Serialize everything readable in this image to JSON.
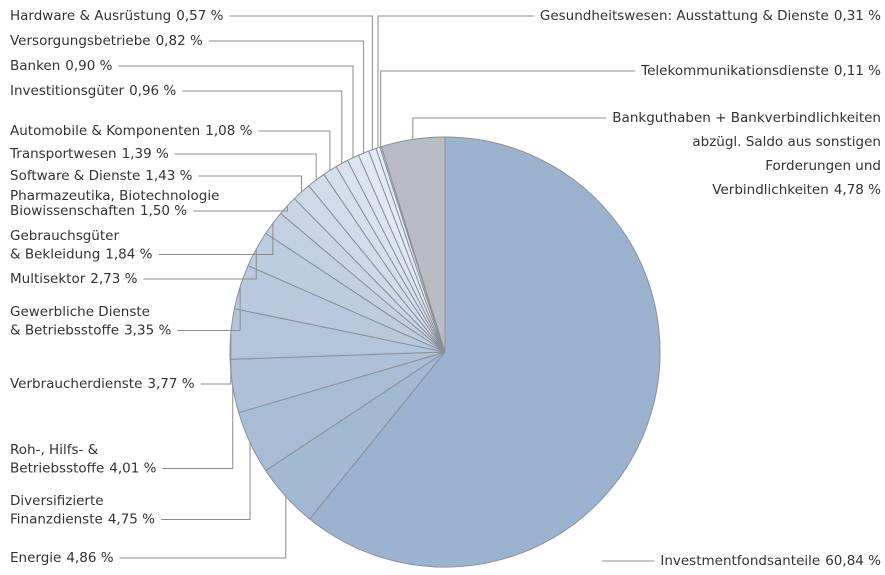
{
  "chart_data": {
    "type": "pie",
    "categories": [
      "Investmentfondsanteile",
      "Energie",
      "Diversifizierte\nFinanzdienste",
      "Roh-, Hilfs- &\nBetriebsstoffe",
      "Verbraucherdienste",
      "Gewerbliche Dienste\n& Betriebsstoffe",
      "Multisektor",
      "Gebrauchsgüter\n& Bekleidung",
      "Pharmazeutika, Biotechnologie\nBiowissenschaften",
      "Software & Dienste",
      "Transportwesen",
      "Automobile & Komponenten",
      "Investitionsgüter",
      "Banken",
      "Versorgungsbetriebe",
      "Hardware & Ausrüstung",
      "Gesundheitswesen: Ausstattung & Dienste",
      "Telekommunikationsdienste",
      "Bankguthaben + Bankverbindlichkeiten\nabzügl. Saldo aus sonstigen\nForderungen und\nVerbindlichkeiten"
    ],
    "values": [
      60.84,
      4.86,
      4.75,
      4.01,
      3.77,
      3.35,
      2.73,
      1.84,
      1.5,
      1.43,
      1.39,
      1.08,
      0.96,
      0.9,
      0.82,
      0.57,
      0.31,
      0.11,
      4.78
    ],
    "value_labels": [
      "60,84 %",
      "4,86 %",
      "4,75 %",
      "4,01 %",
      "3,77 %",
      "3,35 %",
      "2,73 %",
      "1,84 %",
      "1,50 %",
      "1,43 %",
      "1,39 %",
      "1,08 %",
      "0,96 %",
      "0,90 %",
      "0,82 %",
      "0,57 %",
      "0,31 %",
      "0,11 %",
      "4,78 %"
    ],
    "colors": [
      "#9cb3cf",
      "#a3b8d2",
      "#a8bcd5",
      "#aec1d8",
      "#b3c5da",
      "#b8c9dd",
      "#bdcde0",
      "#c2d1e2",
      "#c7d5e5",
      "#ccd9e7",
      "#d0dce9",
      "#d4dfeb",
      "#d8e2ed",
      "#dce5ef",
      "#e0e8f1",
      "#e3eaf2",
      "#e6ecf4",
      "#e9eff5",
      "#b9bcc2"
    ]
  }
}
